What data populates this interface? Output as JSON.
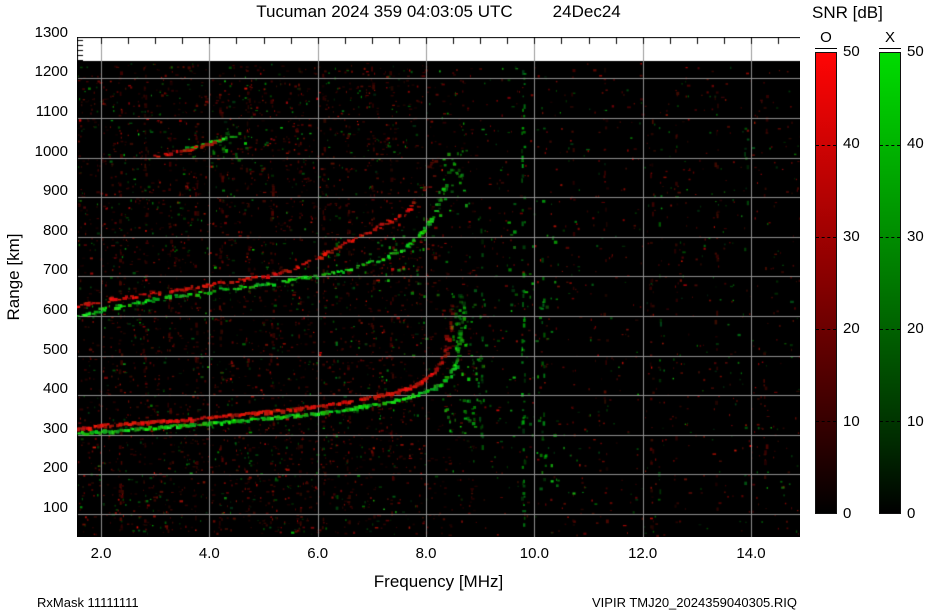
{
  "header": {
    "title": "Tucuman 2024 359 04:03:05 UTC",
    "date": "24Dec24"
  },
  "axes": {
    "x_label": "Frequency [MHz]",
    "y_label": "Range [km]",
    "x_tick_labels": [
      "2.0",
      "4.0",
      "6.0",
      "8.0",
      "10.0",
      "12.0",
      "14.0"
    ],
    "x_tick_values": [
      2,
      4,
      6,
      8,
      10,
      12,
      14
    ],
    "y_tick_labels": [
      "1300",
      "1200",
      "1100",
      "1000",
      "900",
      "800",
      "700",
      "600",
      "500",
      "400",
      "300",
      "200",
      "100"
    ],
    "y_tick_values": [
      1300,
      1200,
      1100,
      1000,
      900,
      800,
      700,
      600,
      500,
      400,
      300,
      200,
      100
    ]
  },
  "colorbar": {
    "title": "SNR [dB]",
    "o_label": "O",
    "x_label": "X",
    "o_color": "#ff0000",
    "x_color": "#00dd00",
    "min": 0,
    "max": 50,
    "tick_labels": [
      "50",
      "40",
      "30",
      "20",
      "10",
      "0"
    ],
    "tick_values": [
      50,
      40,
      30,
      20,
      10,
      0
    ]
  },
  "footer": {
    "rx_mask": "RxMask 11111111",
    "file_id": "VIPIR  TMJ20_2024359040305.RIQ"
  },
  "chart_data": {
    "type": "heatmap",
    "title": "Tucuman 2024 359 04:03:05 UTC 24Dec24",
    "xlabel": "Frequency [MHz]",
    "ylabel": "Range [km]",
    "xlim": [
      1.55,
      14.95
    ],
    "ylim": [
      40,
      1305
    ],
    "x_ticks": [
      2,
      4,
      6,
      8,
      10,
      12,
      14
    ],
    "x_minor_step": 0.5,
    "y_ticks": [
      100,
      200,
      300,
      400,
      500,
      600,
      700,
      800,
      900,
      1000,
      1100,
      1200,
      1300
    ],
    "grid": true,
    "background": "#000000",
    "grid_color": "#969696",
    "data_top_km": 1243,
    "colorbar": {
      "label": "SNR [dB]",
      "min": 0,
      "max": 50,
      "ticks": [
        0,
        10,
        20,
        30,
        40,
        50
      ],
      "series": [
        {
          "name": "O",
          "color": "#ff0000"
        },
        {
          "name": "X",
          "color": "#00dd00"
        }
      ]
    },
    "traces": [
      {
        "name": "upper-multiple-X",
        "mode": "X",
        "thickness": 2.2,
        "jitter": 1.5,
        "skip": 0.55,
        "fade_tail": 0,
        "points": [
          [
            3.5,
            1022
          ],
          [
            3.95,
            1036
          ],
          [
            4.35,
            1052
          ],
          [
            4.55,
            1062
          ]
        ]
      },
      {
        "name": "upper-multiple-O",
        "mode": "O",
        "thickness": 2.6,
        "jitter": 1.3,
        "skip": 0.35,
        "fade_tail": 0,
        "points": [
          [
            2.95,
            1002
          ],
          [
            3.4,
            1013
          ],
          [
            3.85,
            1028
          ],
          [
            4.25,
            1046
          ]
        ]
      },
      {
        "name": "F-2hop-X",
        "mode": "X",
        "thickness": 2.4,
        "jitter": 1.7,
        "skip": 0.35,
        "fade_tail": 0.15,
        "points": [
          [
            1.55,
            602
          ],
          [
            2.8,
            638
          ],
          [
            4.0,
            662
          ],
          [
            5.0,
            680
          ],
          [
            5.9,
            698
          ],
          [
            6.6,
            718
          ],
          [
            7.1,
            740
          ],
          [
            7.5,
            766
          ],
          [
            7.85,
            800
          ],
          [
            8.1,
            848
          ],
          [
            8.25,
            900
          ],
          [
            8.35,
            950
          ],
          [
            8.42,
            1000
          ]
        ]
      },
      {
        "name": "F-2hop-O",
        "mode": "O",
        "thickness": 2.4,
        "jitter": 1.7,
        "skip": 0.3,
        "fade_tail": 0.15,
        "points": [
          [
            1.55,
            625
          ],
          [
            2.4,
            646
          ],
          [
            3.3,
            664
          ],
          [
            4.2,
            682
          ],
          [
            5.0,
            700
          ],
          [
            5.6,
            722
          ],
          [
            6.1,
            755
          ],
          [
            6.6,
            792
          ],
          [
            7.0,
            818
          ],
          [
            7.35,
            840
          ],
          [
            7.65,
            868
          ],
          [
            7.85,
            900
          ],
          [
            8.0,
            938
          ],
          [
            8.1,
            975
          ],
          [
            8.15,
            1005
          ]
        ]
      },
      {
        "name": "F-1hop-X",
        "mode": "X",
        "thickness": 3.0,
        "jitter": 1.2,
        "skip": 0.1,
        "fade_tail": 0.2,
        "points": [
          [
            1.55,
            303
          ],
          [
            2.2,
            309
          ],
          [
            3.0,
            317
          ],
          [
            4.0,
            328
          ],
          [
            5.0,
            340
          ],
          [
            5.8,
            351
          ],
          [
            6.5,
            363
          ],
          [
            7.1,
            377
          ],
          [
            7.6,
            392
          ],
          [
            8.0,
            409
          ],
          [
            8.25,
            427
          ],
          [
            8.42,
            450
          ],
          [
            8.52,
            480
          ],
          [
            8.58,
            520
          ],
          [
            8.61,
            565
          ],
          [
            8.63,
            620
          ],
          [
            8.64,
            658
          ]
        ]
      },
      {
        "name": "F-1hop-O",
        "mode": "O",
        "thickness": 3.0,
        "jitter": 1.2,
        "skip": 0.05,
        "fade_tail": 0.18,
        "points": [
          [
            1.55,
            316
          ],
          [
            2.0,
            322
          ],
          [
            2.6,
            328
          ],
          [
            3.3,
            335
          ],
          [
            4.0,
            343
          ],
          [
            4.7,
            352
          ],
          [
            5.4,
            362
          ],
          [
            6.0,
            372
          ],
          [
            6.5,
            382
          ],
          [
            7.0,
            394
          ],
          [
            7.4,
            407
          ],
          [
            7.7,
            420
          ],
          [
            7.95,
            436
          ],
          [
            8.12,
            455
          ],
          [
            8.25,
            478
          ],
          [
            8.33,
            505
          ],
          [
            8.38,
            540
          ],
          [
            8.41,
            585
          ],
          [
            8.43,
            640
          ]
        ]
      }
    ],
    "streaks": [
      {
        "f": 2.35,
        "color": "red",
        "km": [
          60,
          1230
        ],
        "n": 40,
        "bright": 0.35
      },
      {
        "f": 2.8,
        "color": "red",
        "km": [
          60,
          1230
        ],
        "n": 35,
        "bright": 0.3
      },
      {
        "f": 3.25,
        "color": "red",
        "km": [
          60,
          1230
        ],
        "n": 40,
        "bright": 0.35
      },
      {
        "f": 3.75,
        "color": "red",
        "km": [
          60,
          1230
        ],
        "n": 35,
        "bright": 0.3
      },
      {
        "f": 4.2,
        "color": "red",
        "km": [
          60,
          1230
        ],
        "n": 40,
        "bright": 0.35
      },
      {
        "f": 4.7,
        "color": "red",
        "km": [
          60,
          1230
        ],
        "n": 30,
        "bright": 0.3
      },
      {
        "f": 5.15,
        "color": "red",
        "km": [
          60,
          1230
        ],
        "n": 35,
        "bright": 0.3
      },
      {
        "f": 5.65,
        "color": "red",
        "km": [
          60,
          1230
        ],
        "n": 30,
        "bright": 0.3
      },
      {
        "f": 6.1,
        "color": "red",
        "km": [
          60,
          1230
        ],
        "n": 30,
        "bright": 0.3
      },
      {
        "f": 6.55,
        "color": "red",
        "km": [
          60,
          1230
        ],
        "n": 28,
        "bright": 0.28
      },
      {
        "f": 7.0,
        "color": "red",
        "km": [
          60,
          1230
        ],
        "n": 28,
        "bright": 0.28
      },
      {
        "f": 7.35,
        "color": "red",
        "km": [
          60,
          1230
        ],
        "n": 25,
        "bright": 0.25
      },
      {
        "f": 9.78,
        "color": "green",
        "km": [
          60,
          1230
        ],
        "n": 60,
        "bright": 0.85
      },
      {
        "f": 9.0,
        "color": "green",
        "km": [
          250,
          860
        ],
        "n": 22,
        "bright": 0.6
      },
      {
        "f": 10.15,
        "color": "green",
        "km": [
          100,
          800
        ],
        "n": 16,
        "bright": 0.5
      },
      {
        "f": 10.7,
        "color": "red",
        "km": [
          60,
          1230
        ],
        "n": 18,
        "bright": 0.25
      },
      {
        "f": 11.3,
        "color": "red",
        "km": [
          60,
          1230
        ],
        "n": 22,
        "bright": 0.3
      },
      {
        "f": 12.15,
        "color": "red",
        "km": [
          60,
          1230
        ],
        "n": 26,
        "bright": 0.3
      },
      {
        "f": 12.6,
        "color": "red",
        "km": [
          60,
          1230
        ],
        "n": 18,
        "bright": 0.25
      },
      {
        "f": 13.35,
        "color": "red",
        "km": [
          60,
          1230
        ],
        "n": 22,
        "bright": 0.3
      },
      {
        "f": 14.25,
        "color": "red",
        "km": [
          60,
          1230
        ],
        "n": 18,
        "bright": 0.28
      },
      {
        "f": 12.3,
        "color": "green",
        "km": [
          100,
          1100
        ],
        "n": 12,
        "bright": 0.45
      },
      {
        "f": 13.9,
        "color": "green",
        "km": [
          100,
          1100
        ],
        "n": 10,
        "bright": 0.4
      },
      {
        "f": 6.35,
        "color": "green",
        "km": [
          100,
          800
        ],
        "n": 12,
        "bright": 0.4
      }
    ],
    "clusters": [
      {
        "f": [
          8.45,
          9.1
        ],
        "km": [
          380,
          670
        ],
        "n": 55,
        "color": "green"
      },
      {
        "f": [
          8.2,
          8.75
        ],
        "km": [
          850,
          1020
        ],
        "n": 30,
        "color": "green"
      },
      {
        "f": [
          7.2,
          8.3
        ],
        "km": [
          650,
          850
        ],
        "n": 35,
        "color": "mix"
      },
      {
        "f": [
          9.5,
          10.4
        ],
        "km": [
          150,
          900
        ],
        "n": 45,
        "color": "green"
      },
      {
        "f": [
          4.0,
          4.7
        ],
        "km": [
          990,
          1075
        ],
        "n": 16,
        "color": "green"
      },
      {
        "f": [
          8.3,
          8.9
        ],
        "km": [
          300,
          390
        ],
        "n": 25,
        "color": "green"
      }
    ],
    "noise": {
      "seed": 20241224,
      "count": 3400,
      "left_extra": 1200
    }
  }
}
